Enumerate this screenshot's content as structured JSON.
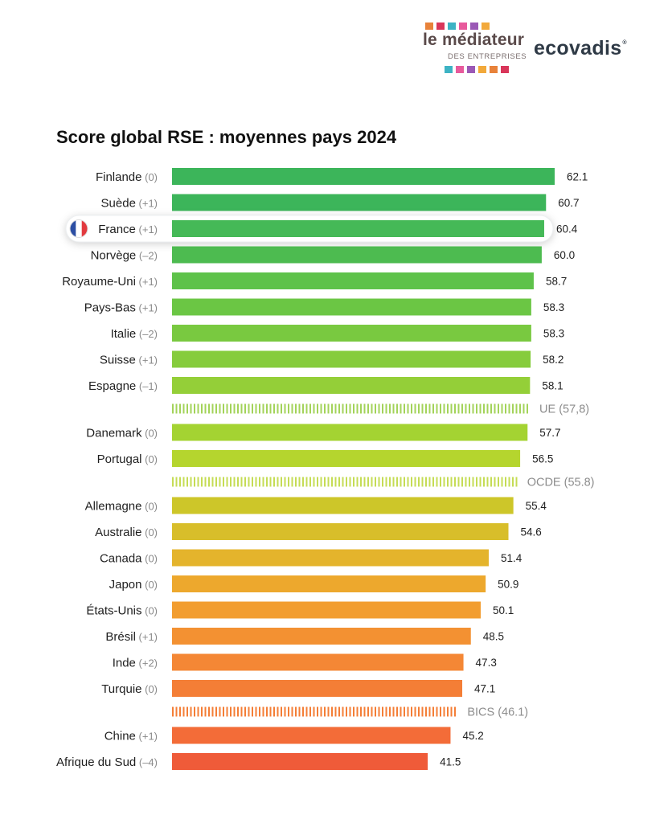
{
  "logos": {
    "mediateur_title": "le médiateur",
    "mediateur_subtitle": "DES ENTREPRISES",
    "ecovadis": "ecovadis",
    "ecovadis_mark": "®",
    "square_colors": [
      "#e8823a",
      "#d9365a",
      "#3db3c4",
      "#e85a9c",
      "#9b59b6",
      "#f2a93b"
    ]
  },
  "chart_data": {
    "type": "bar",
    "orientation": "horizontal",
    "title": "Score global RSE : moyennes pays 2024",
    "xlim": [
      0,
      62.1
    ],
    "highlight": "France",
    "rows": [
      {
        "kind": "bar",
        "label": "Finlande",
        "change": "(0)",
        "value": 62.1,
        "value_label": "62.1",
        "color": "#3cb55a"
      },
      {
        "kind": "bar",
        "label": "Suède",
        "change": "(+1)",
        "value": 60.7,
        "value_label": "60.7",
        "color": "#3cb55a"
      },
      {
        "kind": "bar",
        "label": "France",
        "change": "(+1)",
        "value": 60.4,
        "value_label": "60.4",
        "color": "#45b957"
      },
      {
        "kind": "bar",
        "label": "Norvège",
        "change": "(–2)",
        "value": 60.0,
        "value_label": "60.0",
        "color": "#4dbb50"
      },
      {
        "kind": "bar",
        "label": "Royaume-Uni",
        "change": "(+1)",
        "value": 58.7,
        "value_label": "58.7",
        "color": "#5ec24a"
      },
      {
        "kind": "bar",
        "label": "Pays-Bas",
        "change": "(+1)",
        "value": 58.3,
        "value_label": "58.3",
        "color": "#6bc644"
      },
      {
        "kind": "bar",
        "label": "Italie",
        "change": "(–2)",
        "value": 58.3,
        "value_label": "58.3",
        "color": "#79c940"
      },
      {
        "kind": "bar",
        "label": "Suisse",
        "change": "(+1)",
        "value": 58.2,
        "value_label": "58.2",
        "color": "#86cc3c"
      },
      {
        "kind": "bar",
        "label": "Espagne",
        "change": "(–1)",
        "value": 58.1,
        "value_label": "58.1",
        "color": "#94cf38"
      },
      {
        "kind": "ref",
        "label": "UE (57,8)",
        "value": 57.8,
        "color": "#a3d35a"
      },
      {
        "kind": "bar",
        "label": "Danemark",
        "change": "(0)",
        "value": 57.7,
        "value_label": "57.7",
        "color": "#a4d332"
      },
      {
        "kind": "bar",
        "label": "Portugal",
        "change": "(0)",
        "value": 56.5,
        "value_label": "56.5",
        "color": "#b5d52e"
      },
      {
        "kind": "ref",
        "label": "OCDE (55.8)",
        "value": 55.8,
        "color": "#c5dc55"
      },
      {
        "kind": "bar",
        "label": "Allemagne",
        "change": "(0)",
        "value": 55.4,
        "value_label": "55.4",
        "color": "#cdc629"
      },
      {
        "kind": "bar",
        "label": "Australie",
        "change": "(0)",
        "value": 54.6,
        "value_label": "54.6",
        "color": "#d8be2a"
      },
      {
        "kind": "bar",
        "label": "Canada",
        "change": "(0)",
        "value": 51.4,
        "value_label": "51.4",
        "color": "#e4b42c"
      },
      {
        "kind": "bar",
        "label": "Japon",
        "change": "(0)",
        "value": 50.9,
        "value_label": "50.9",
        "color": "#eda82d"
      },
      {
        "kind": "bar",
        "label": "États-Unis",
        "change": "(0)",
        "value": 50.1,
        "value_label": "50.1",
        "color": "#f29d2f"
      },
      {
        "kind": "bar",
        "label": "Brésil",
        "change": "(+1)",
        "value": 48.5,
        "value_label": "48.5",
        "color": "#f39132"
      },
      {
        "kind": "bar",
        "label": "Inde",
        "change": "(+2)",
        "value": 47.3,
        "value_label": "47.3",
        "color": "#f48735"
      },
      {
        "kind": "bar",
        "label": "Turquie",
        "change": "(0)",
        "value": 47.1,
        "value_label": "47.1",
        "color": "#f47e36"
      },
      {
        "kind": "ref",
        "label": "BICS (46.1)",
        "value": 46.1,
        "color": "#f47e36"
      },
      {
        "kind": "bar",
        "label": "Chine",
        "change": "(+1)",
        "value": 45.2,
        "value_label": "45.2",
        "color": "#f36c38"
      },
      {
        "kind": "bar",
        "label": "Afrique du Sud",
        "change": "(–4)",
        "value": 41.5,
        "value_label": "41.5",
        "color": "#ef5b39"
      }
    ]
  }
}
